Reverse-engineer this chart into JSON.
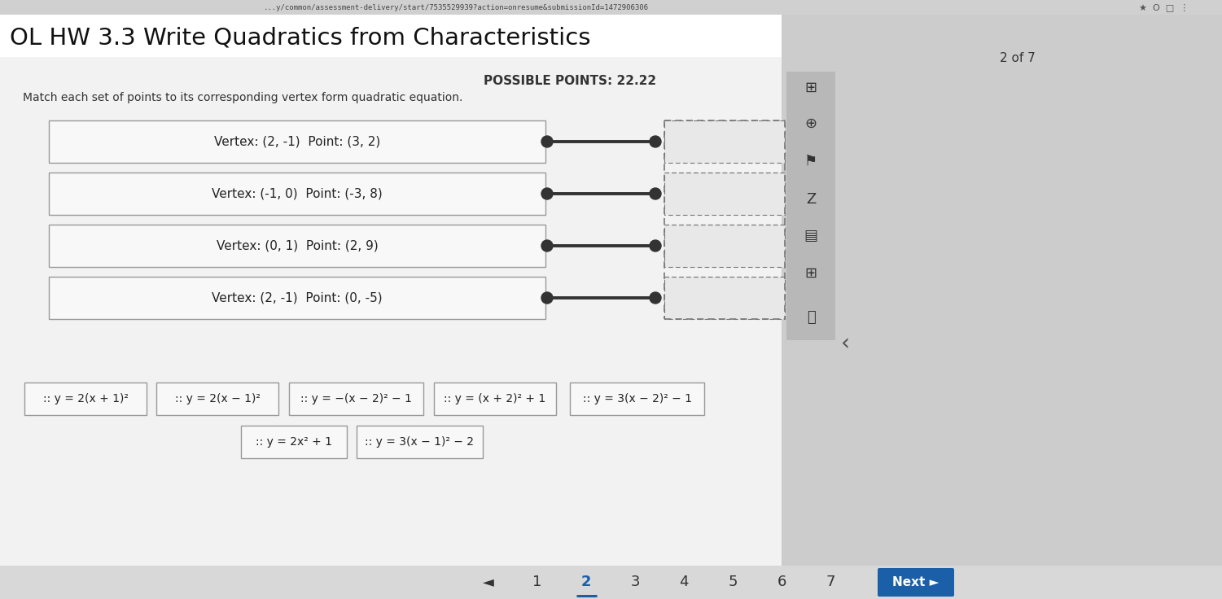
{
  "url_text": "...y/common/assessment-delivery/start/7535529939?action=onresume&submissionId=1472906306",
  "title": "OL HW 3.3 Write Quadratics from Characteristics",
  "page_info": "2 of 7",
  "possible_points": "POSSIBLE POINTS: 22.22",
  "instruction": "Match each set of points to its corresponding vertex form quadratic equation.",
  "left_boxes": [
    "Vertex: (2, -1)  Point: (3, 2)",
    "Vertex: (-1, 0)  Point: (-3, 8)",
    "Vertex: (0, 1)  Point: (2, 9)",
    "Vertex: (2, -1)  Point: (0, -5)"
  ],
  "equations_row1": [
    ":: y = 2(x + 1)²",
    ":: y = 2(x − 1)²",
    ":: y = −(x − 2)² − 1",
    ":: y = (x + 2)² + 1",
    ":: y = 3(x − 2)² − 1"
  ],
  "equations_row2": [
    ":: y = 2x² + 1",
    ":: y = 3(x − 1)² − 2"
  ],
  "bg_color": "#c8c8c8",
  "content_bg": "#e8e8e8",
  "white_area": "#f2f2f2",
  "left_box_fill": "#f5f5f5",
  "dashed_box_fill": "#e8e8e8",
  "connector_color": "#333333",
  "title_color": "#111111",
  "nav_bg": "#1a5fa8",
  "nav_text": "#ffffff",
  "sidebar_bg": "#c0c0c0",
  "url_bar_bg": "#d0d0d0",
  "title_area_bg": "#f0f0f0"
}
